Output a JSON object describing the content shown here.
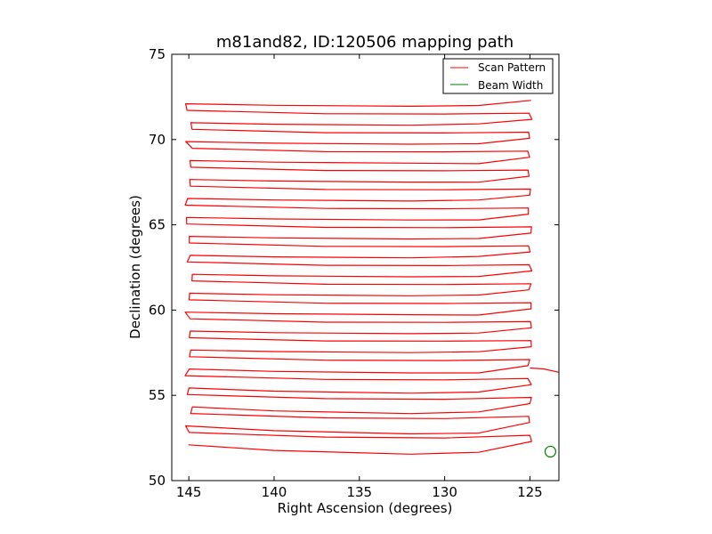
{
  "chart_data": {
    "type": "line",
    "title": "m81and82, ID:120506 mapping path",
    "xlabel": "Right Ascension (degrees)",
    "ylabel": "Declination (degrees)",
    "xlim": [
      146,
      123.3
    ],
    "ylim": [
      50,
      75
    ],
    "x_inverted": true,
    "xticks": [
      145,
      140,
      135,
      130,
      125
    ],
    "yticks": [
      50,
      55,
      60,
      65,
      70,
      75
    ],
    "grid": false,
    "legend_position": "top-right",
    "legend": [
      {
        "label": "Scan Pattern",
        "color": "#ff0000"
      },
      {
        "label": "Beam Width",
        "color": "#008000"
      }
    ],
    "series": [
      {
        "name": "Scan Pattern",
        "color": "#ff0000",
        "scan_rows": {
          "dec_start": 52.1,
          "dec_end": 72.1,
          "row_count": 37,
          "ra_west": 145,
          "ra_east": 125
        }
      },
      {
        "name": "Beam Width",
        "color": "#008000",
        "marker": "circle",
        "x": [
          123.8
        ],
        "y": [
          51.7
        ]
      }
    ]
  }
}
